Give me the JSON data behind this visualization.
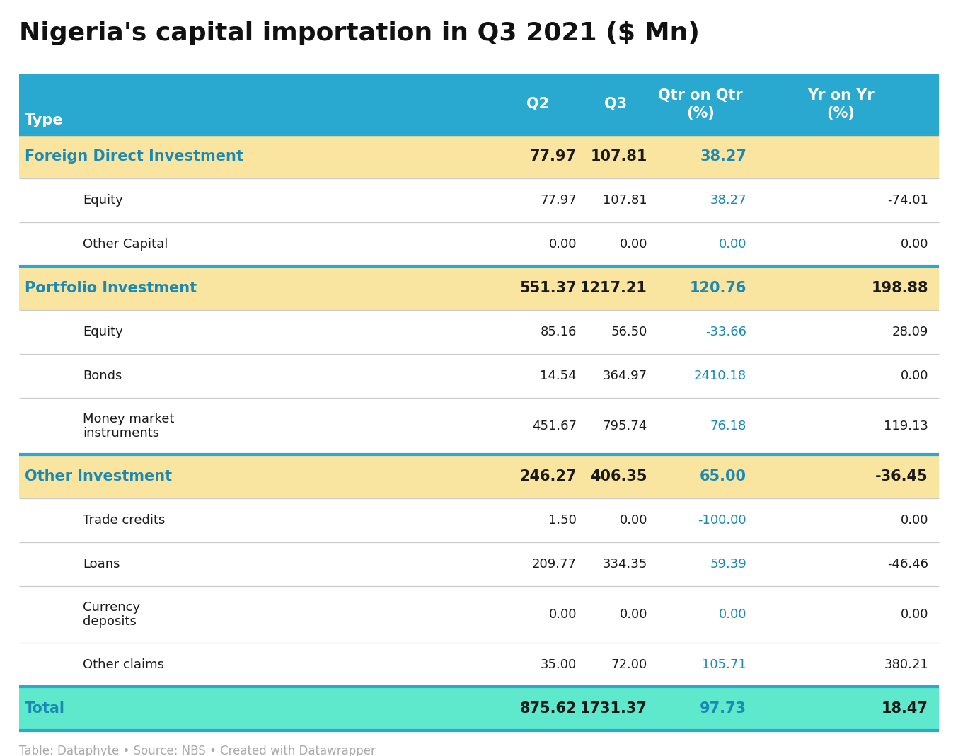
{
  "title": "Nigeria's capital importation in Q3 2021 ($ Mn)",
  "header": [
    "Type",
    "Q2",
    "Q3",
    "Qtr on Qtr\n(%)",
    "Yr on Yr\n(%)"
  ],
  "rows": [
    {
      "type": "category",
      "label": "Foreign Direct Investment",
      "q2": "77.97",
      "q3": "107.81",
      "qoq": "38.27",
      "yoy": "",
      "bg_color": "#f9e4a0",
      "label_color": "#1a8ab5",
      "text_bold": true,
      "qoq_color": "#1a8ab5",
      "yoy_color": "#1a1a1a"
    },
    {
      "type": "sub",
      "label": "Equity",
      "q2": "77.97",
      "q3": "107.81",
      "qoq": "38.27",
      "yoy": "-74.01",
      "bg_color": "#ffffff",
      "label_color": "#1a1a1a",
      "text_bold": false,
      "qoq_color": "#1a8ab5",
      "yoy_color": "#1a1a1a"
    },
    {
      "type": "sub",
      "label": "Other Capital",
      "q2": "0.00",
      "q3": "0.00",
      "qoq": "0.00",
      "yoy": "0.00",
      "bg_color": "#ffffff",
      "label_color": "#1a1a1a",
      "text_bold": false,
      "qoq_color": "#1a8ab5",
      "yoy_color": "#1a1a1a"
    },
    {
      "type": "category",
      "label": "Portfolio Investment",
      "q2": "551.37",
      "q3": "1217.21",
      "qoq": "120.76",
      "yoy": "198.88",
      "bg_color": "#f9e4a0",
      "label_color": "#1a8ab5",
      "text_bold": true,
      "qoq_color": "#1a8ab5",
      "yoy_color": "#1a1a1a"
    },
    {
      "type": "sub",
      "label": "Equity",
      "q2": "85.16",
      "q3": "56.50",
      "qoq": "-33.66",
      "yoy": "28.09",
      "bg_color": "#ffffff",
      "label_color": "#1a1a1a",
      "text_bold": false,
      "qoq_color": "#1a8ab5",
      "yoy_color": "#1a1a1a"
    },
    {
      "type": "sub",
      "label": "Bonds",
      "q2": "14.54",
      "q3": "364.97",
      "qoq": "2410.18",
      "yoy": "0.00",
      "bg_color": "#ffffff",
      "label_color": "#1a1a1a",
      "text_bold": false,
      "qoq_color": "#1a8ab5",
      "yoy_color": "#1a1a1a"
    },
    {
      "type": "sub",
      "label": "Money market\ninstruments",
      "q2": "451.67",
      "q3": "795.74",
      "qoq": "76.18",
      "yoy": "119.13",
      "bg_color": "#ffffff",
      "label_color": "#1a1a1a",
      "text_bold": false,
      "qoq_color": "#1a8ab5",
      "yoy_color": "#1a1a1a"
    },
    {
      "type": "category",
      "label": "Other Investment",
      "q2": "246.27",
      "q3": "406.35",
      "qoq": "65.00",
      "yoy": "-36.45",
      "bg_color": "#f9e4a0",
      "label_color": "#1a8ab5",
      "text_bold": true,
      "qoq_color": "#1a8ab5",
      "yoy_color": "#1a1a1a"
    },
    {
      "type": "sub",
      "label": "Trade credits",
      "q2": "1.50",
      "q3": "0.00",
      "qoq": "-100.00",
      "yoy": "0.00",
      "bg_color": "#ffffff",
      "label_color": "#1a1a1a",
      "text_bold": false,
      "qoq_color": "#1a8ab5",
      "yoy_color": "#1a1a1a"
    },
    {
      "type": "sub",
      "label": "Loans",
      "q2": "209.77",
      "q3": "334.35",
      "qoq": "59.39",
      "yoy": "-46.46",
      "bg_color": "#ffffff",
      "label_color": "#1a1a1a",
      "text_bold": false,
      "qoq_color": "#1a8ab5",
      "yoy_color": "#1a1a1a"
    },
    {
      "type": "sub",
      "label": "Currency\ndeposits",
      "q2": "0.00",
      "q3": "0.00",
      "qoq": "0.00",
      "yoy": "0.00",
      "bg_color": "#ffffff",
      "label_color": "#1a1a1a",
      "text_bold": false,
      "qoq_color": "#1a8ab5",
      "yoy_color": "#1a1a1a"
    },
    {
      "type": "sub",
      "label": "Other claims",
      "q2": "35.00",
      "q3": "72.00",
      "qoq": "105.71",
      "yoy": "380.21",
      "bg_color": "#ffffff",
      "label_color": "#1a1a1a",
      "text_bold": false,
      "qoq_color": "#1a8ab5",
      "yoy_color": "#1a1a1a"
    },
    {
      "type": "total",
      "label": "Total",
      "q2": "875.62",
      "q3": "1731.37",
      "qoq": "97.73",
      "yoy": "18.47",
      "bg_color": "#5ee8cc",
      "label_color": "#1a8ab5",
      "text_bold": true,
      "qoq_color": "#1a8ab5",
      "yoy_color": "#1a1a1a"
    }
  ],
  "header_bg": "#29a8d0",
  "header_text_color": "#ffffff",
  "header_border_bottom": "#1a6080",
  "separator_color": "#cccccc",
  "category_border_color": "#29a8d0",
  "footer_text": "Table: Dataphyte • Source: NBS • Created with Datawrapper",
  "footer_color": "#aaaaaa",
  "fig_width": 13.54,
  "fig_height": 10.68,
  "dpi": 100
}
